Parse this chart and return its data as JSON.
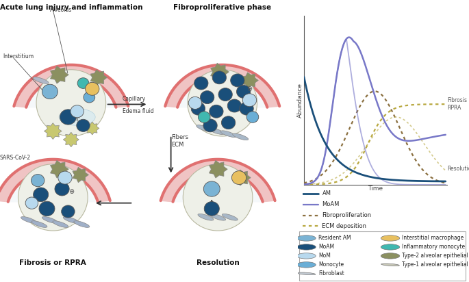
{
  "panel_labels": {
    "top_left": "Acute lung injury and inflammation",
    "top_right": "Fibroproliferative phase",
    "bottom_left": "Fibrosis or RPRA",
    "bottom_right": "Resolution"
  },
  "graph": {
    "xlabel": "Time",
    "ylabel": "Abundance",
    "fibrosis_label": "Fibrosis\nRPRA",
    "resolution_label": "Resolution"
  },
  "am_color": "#1a4f7a",
  "moam_color": "#7878c8",
  "fibro_color": "#8b7040",
  "ecm_color": "#b8a840",
  "legend_lines": [
    {
      "label": "AM",
      "color": "#1a4f7a",
      "lw": 2.0,
      "style": "-"
    },
    {
      "label": "MoAM",
      "color": "#7878c8",
      "lw": 1.6,
      "style": "-"
    },
    {
      "label": "Fibroproliferation",
      "color": "#8b7040",
      "lw": 1.6,
      "style": ":"
    },
    {
      "label": "ECM deposition",
      "color": "#b8a840",
      "lw": 1.6,
      "style": ":"
    }
  ],
  "cell_types": {
    "resident_am": "#7ab3d4",
    "moam": "#1a4f7a",
    "mom": "#b8d9ee",
    "monocyte": "#6aaed6",
    "interstitial": "#e8c060",
    "inflammatory": "#40b8b0",
    "type2": "#8b9060",
    "type1": "#c8c8b8"
  },
  "tissue_color": "#f0c4c4",
  "wall_color": "#e07070",
  "alveolus_bg": "#eef0e8",
  "lumen_color": "#f5f8fa",
  "background_color": "#ffffff"
}
